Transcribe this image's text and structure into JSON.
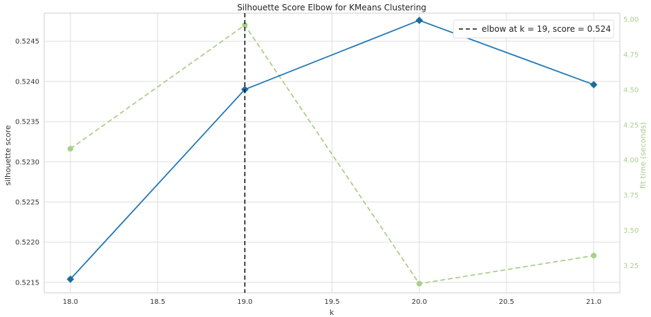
{
  "chart_data": {
    "type": "line",
    "title": "Silhouette Score Elbow for KMeans Clustering",
    "xlabel": "k",
    "ylabel": "silhouette score",
    "y2label": "fit time (seconds)",
    "x": [
      18,
      19,
      20,
      21
    ],
    "xlim": [
      17.85,
      21.15
    ],
    "ylim": [
      0.52137,
      0.52485
    ],
    "y2lim": [
      3.055,
      5.045
    ],
    "xticks": [
      "18.0",
      "18.5",
      "19.0",
      "19.5",
      "20.0",
      "20.5",
      "21.0"
    ],
    "yticks": [
      "0.5215",
      "0.5220",
      "0.5225",
      "0.5230",
      "0.5235",
      "0.5240",
      "0.5245"
    ],
    "y2ticks": [
      "3.25",
      "3.50",
      "3.75",
      "4.00",
      "4.25",
      "4.50",
      "4.75",
      "5.00"
    ],
    "series": [
      {
        "values": [
          0.52154,
          0.5239,
          0.52476,
          0.52396
        ],
        "color": "#1f77b4",
        "marker": "diamond",
        "axis": "left"
      },
      {
        "values": [
          4.08,
          4.96,
          3.12,
          3.32
        ],
        "color": "#a9cf8a",
        "marker": "circle",
        "axis": "right",
        "linestyle": "dashed"
      }
    ],
    "elbow": {
      "x": 19
    },
    "legend": {
      "label": "elbow at k = 19, score = 0.524",
      "placement": "top-right"
    },
    "grid": true
  }
}
